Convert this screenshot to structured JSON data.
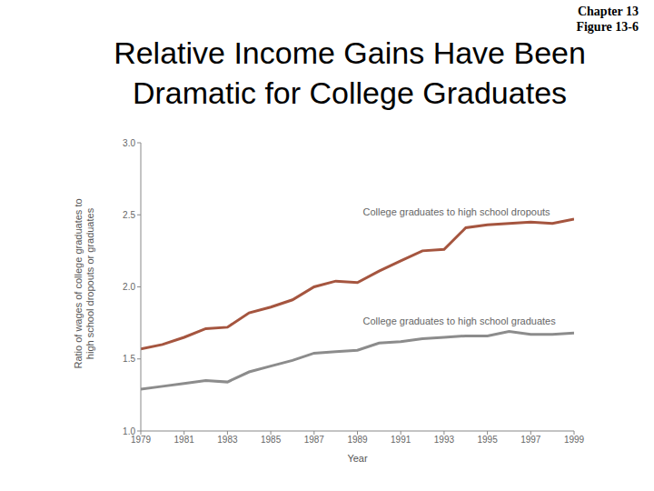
{
  "chart_data": {
    "type": "line",
    "header": [
      "Chapter 13",
      "Figure 13-6"
    ],
    "title": "Relative Income Gains Have Been Dramatic for College Graduates",
    "x_label": "Year",
    "y_label": "Ratio of wages of college graduates to high school dropouts or graduates",
    "x": [
      1979,
      1980,
      1981,
      1982,
      1983,
      1984,
      1985,
      1986,
      1987,
      1988,
      1989,
      1990,
      1991,
      1992,
      1993,
      1994,
      1995,
      1996,
      1997,
      1998,
      1999
    ],
    "series": [
      {
        "name": "College graduates to high school dropouts",
        "color": "#a5553f",
        "values": [
          1.57,
          1.6,
          1.65,
          1.71,
          1.72,
          1.82,
          1.86,
          1.91,
          2.0,
          2.04,
          2.03,
          2.11,
          2.18,
          2.25,
          2.26,
          2.41,
          2.43,
          2.44,
          2.45,
          2.44,
          2.47
        ]
      },
      {
        "name": "College graduates to high school graduates",
        "color": "#8c8c8c",
        "values": [
          1.29,
          1.31,
          1.33,
          1.35,
          1.34,
          1.41,
          1.45,
          1.49,
          1.54,
          1.55,
          1.56,
          1.61,
          1.62,
          1.64,
          1.65,
          1.66,
          1.66,
          1.69,
          1.67,
          1.67,
          1.68
        ]
      }
    ],
    "xlim": [
      1979,
      1999
    ],
    "xticks": [
      1979,
      1981,
      1983,
      1985,
      1987,
      1989,
      1991,
      1993,
      1995,
      1997,
      1999
    ],
    "ylim": [
      1,
      3
    ],
    "yticks": [
      {
        "value": 1,
        "label": "1.0"
      },
      {
        "value": 1.5,
        "label": "1.5"
      },
      {
        "value": 2,
        "label": "2.0"
      },
      {
        "value": 2.5,
        "label": "2.5"
      },
      {
        "value": 3,
        "label": "3.0"
      }
    ],
    "grid": false
  }
}
